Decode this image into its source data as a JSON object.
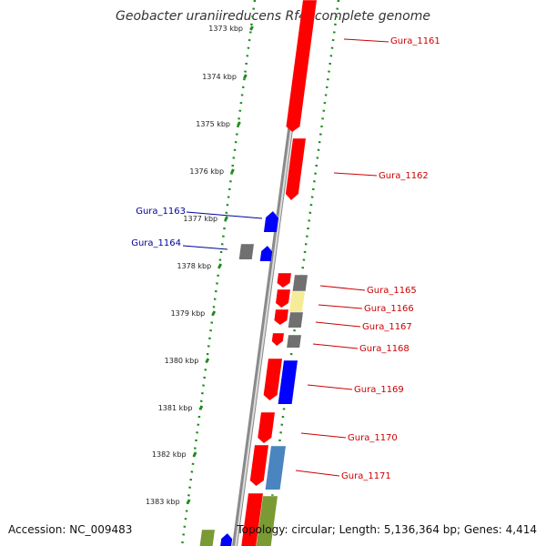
{
  "title": "Geobacter uraniireducens Rf4, complete genome",
  "footer": {
    "accession": "Accession: NC_009483",
    "summary": "Topology: circular; Length: 5,136,364 bp; Genes: 4,414"
  },
  "colors": {
    "red": "#ff0000",
    "blue": "#0000ff",
    "gray": "#707070",
    "light_yellow": "#f5ec98",
    "steel_blue": "#4a85c0",
    "olive_green": "#7a9a34",
    "backbone": "#8a8a8a",
    "tick_green": "#1e8c1e",
    "label_red": "#cc0000",
    "label_blue": "#000099"
  },
  "ticks": [
    "1373 kbp",
    "1374 kbp",
    "1375 kbp",
    "1376 kbp",
    "1377 kbp",
    "1378 kbp",
    "1379 kbp",
    "1380 kbp",
    "1381 kbp",
    "1382 kbp",
    "1383 kbp"
  ],
  "gene_labels": [
    {
      "text": "Gura_1161",
      "strand": "forward"
    },
    {
      "text": "Gura_1162",
      "strand": "forward"
    },
    {
      "text": "Gura_1163",
      "strand": "reverse"
    },
    {
      "text": "Gura_1164",
      "strand": "reverse"
    },
    {
      "text": "Gura_1165",
      "strand": "forward"
    },
    {
      "text": "Gura_1166",
      "strand": "forward"
    },
    {
      "text": "Gura_1167",
      "strand": "forward"
    },
    {
      "text": "Gura_1168",
      "strand": "forward"
    },
    {
      "text": "Gura_1169",
      "strand": "forward"
    },
    {
      "text": "Gura_1170",
      "strand": "forward"
    },
    {
      "text": "Gura_1171",
      "strand": "forward"
    }
  ]
}
